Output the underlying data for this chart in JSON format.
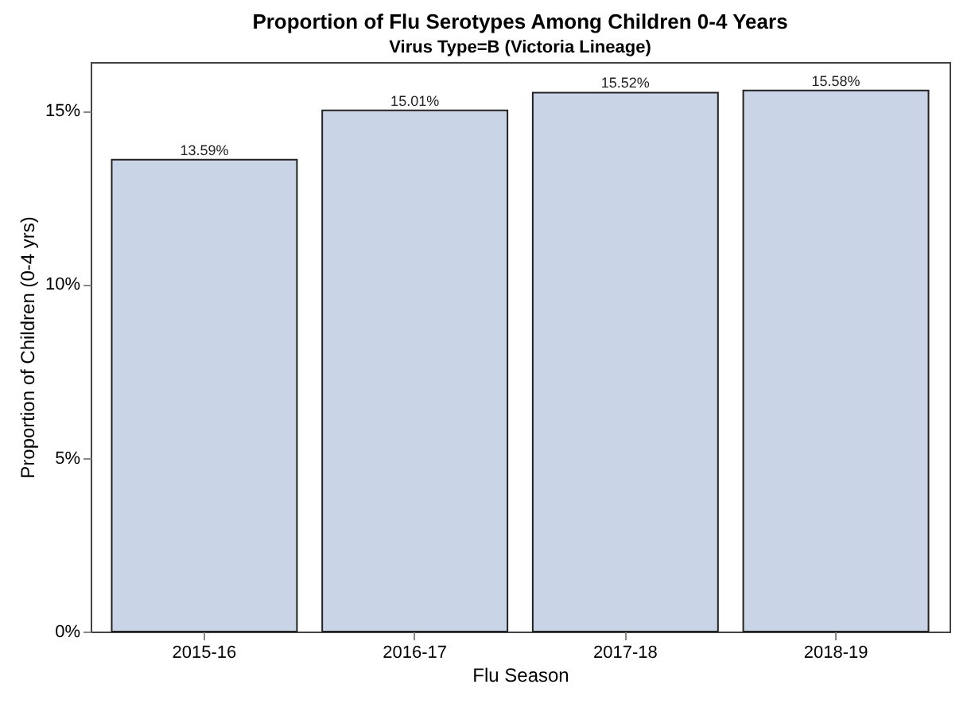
{
  "chart_data": {
    "type": "bar",
    "title": "Proportion of Flu Serotypes Among Children 0-4 Years",
    "subtitle": "Virus Type=B (Victoria Lineage)",
    "xlabel": "Flu Season",
    "ylabel": "Proportion of Children (0-4 yrs)",
    "categories": [
      "2015-16",
      "2016-17",
      "2017-18",
      "2018-19"
    ],
    "values": [
      13.59,
      15.01,
      15.52,
      15.58
    ],
    "value_labels": [
      "13.59%",
      "15.01%",
      "15.52%",
      "15.58%"
    ],
    "color": "#c9d5e6",
    "ylim": [
      0,
      16.4
    ],
    "yticks": [
      {
        "value": 0,
        "label": "0%"
      },
      {
        "value": 5,
        "label": "5%"
      },
      {
        "value": 10,
        "label": "10%"
      },
      {
        "value": 15,
        "label": "15%"
      }
    ],
    "grid": false
  }
}
